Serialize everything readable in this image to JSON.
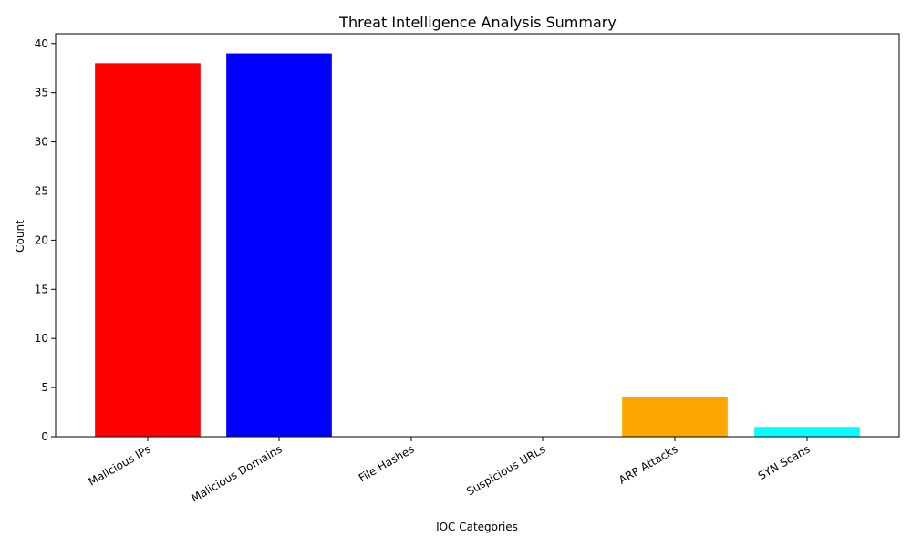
{
  "chart_data": {
    "type": "bar",
    "title": "Threat Intelligence Analysis Summary",
    "xlabel": "IOC Categories",
    "ylabel": "Count",
    "categories": [
      "Malicious IPs",
      "Malicious Domains",
      "File Hashes",
      "Suspicious URLs",
      "ARP Attacks",
      "SYN Scans"
    ],
    "values": [
      38,
      39,
      0,
      0,
      4,
      1
    ],
    "colors": [
      "#ff0000",
      "#0000ff",
      "#008000",
      "#800080",
      "#ffa500",
      "#00ffff"
    ],
    "ylim": [
      0,
      41
    ],
    "yticks": [
      "0",
      "5",
      "10",
      "15",
      "20",
      "25",
      "30",
      "35",
      "40"
    ],
    "grid": false,
    "legend": "none"
  }
}
